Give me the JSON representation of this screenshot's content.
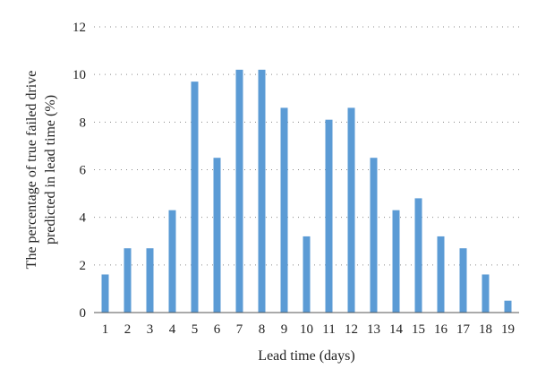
{
  "chart_data": {
    "type": "bar",
    "categories": [
      "1",
      "2",
      "3",
      "4",
      "5",
      "6",
      "7",
      "8",
      "9",
      "10",
      "11",
      "12",
      "13",
      "14",
      "15",
      "16",
      "17",
      "18",
      "19"
    ],
    "values": [
      1.6,
      2.7,
      2.7,
      4.3,
      9.7,
      6.5,
      10.2,
      10.2,
      8.6,
      3.2,
      8.1,
      8.6,
      6.5,
      4.3,
      4.8,
      3.2,
      2.7,
      1.6,
      0.5
    ],
    "xlabel": "Lead time (days)",
    "ylabel_lines": [
      "The percentage of true failed drive",
      "predicted in lead time (%)"
    ],
    "ylim": [
      0,
      12
    ],
    "yticks": [
      0,
      2,
      4,
      6,
      8,
      10,
      12
    ],
    "grid": true,
    "bar_color": "#5b9bd5"
  }
}
